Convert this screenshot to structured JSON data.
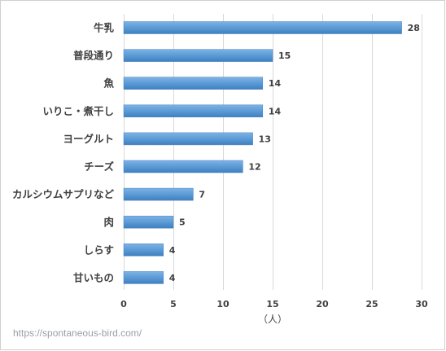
{
  "chart_data": {
    "type": "bar",
    "orientation": "horizontal",
    "categories": [
      "牛乳",
      "普段通り",
      "魚",
      "いりこ・煮干し",
      "ヨーグルト",
      "チーズ",
      "カルシウムサプリなど",
      "肉",
      "しらす",
      "甘いもの"
    ],
    "values": [
      28,
      15,
      14,
      14,
      13,
      12,
      7,
      5,
      4,
      4
    ],
    "xlim": [
      0,
      30
    ],
    "xticks": [
      0,
      5,
      10,
      15,
      20,
      25,
      30
    ],
    "xlabel": "（人）",
    "grid": true,
    "bar_color": "#5b9bd5",
    "data_labels": true
  },
  "watermark": "https://spontaneous-bird.com/"
}
